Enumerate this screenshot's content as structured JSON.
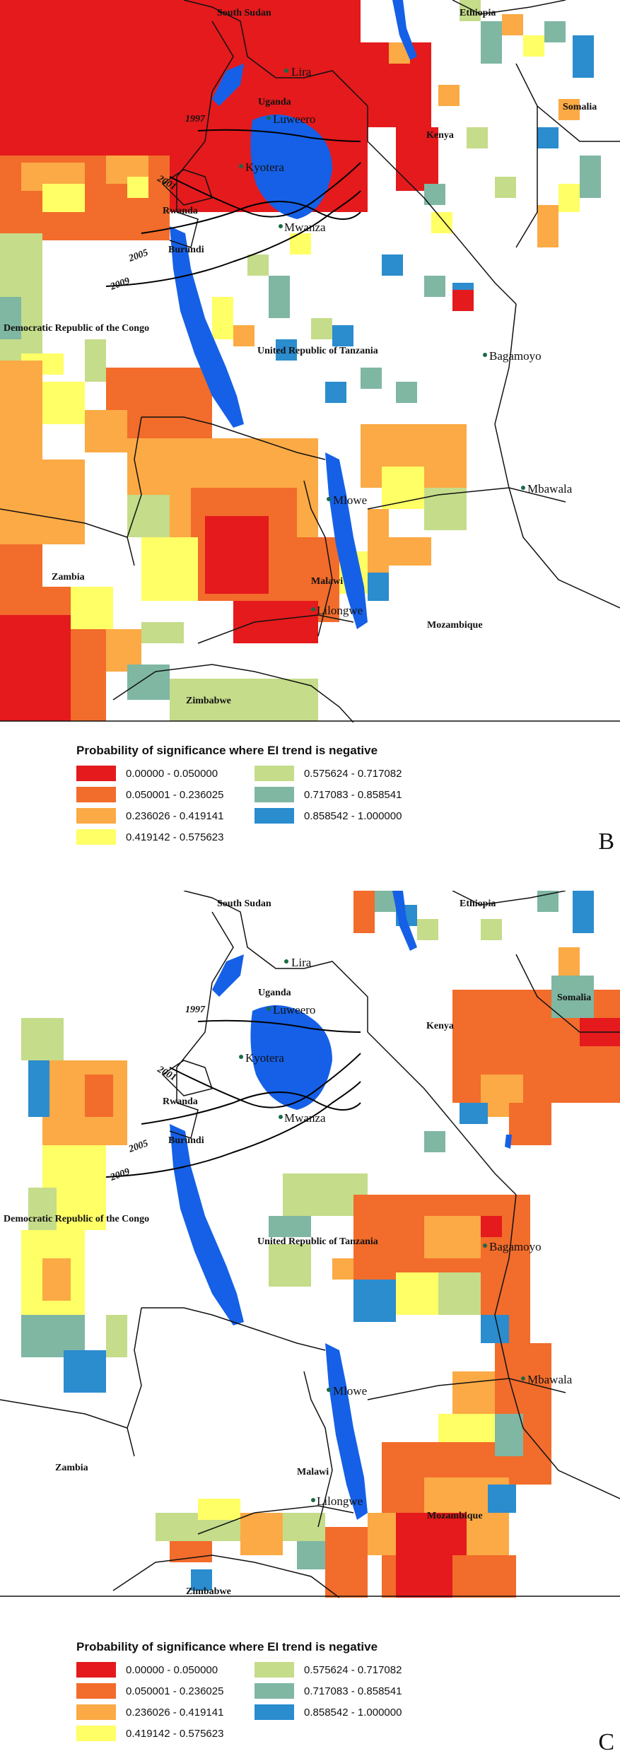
{
  "colors": {
    "c1": "#e41a1c",
    "c2": "#f26c2b",
    "c3": "#fbaa45",
    "c4": "#ffff66",
    "c5": "#c5dc8a",
    "c6": "#7fb7a3",
    "c7": "#2b8cce",
    "lake": "#1560e6",
    "border": "#111111"
  },
  "legend": {
    "title": "Probability of significance where EI trend is negative",
    "items": [
      {
        "label": "0.00000 - 0.050000",
        "color": "#e41a1c"
      },
      {
        "label": "0.050001 - 0.236025",
        "color": "#f26c2b"
      },
      {
        "label": "0.236026 - 0.419141",
        "color": "#fbaa45"
      },
      {
        "label": "0.419142 - 0.575623",
        "color": "#ffff66"
      },
      {
        "label": "0.575624 - 0.717082",
        "color": "#c5dc8a"
      },
      {
        "label": "0.717083 - 0.858541",
        "color": "#7fb7a3"
      },
      {
        "label": "0.858542 - 1.000000",
        "color": "#2b8cce"
      }
    ]
  },
  "labels": {
    "countries": {
      "south_sudan": "South Sudan",
      "ethiopia": "Ethiopia",
      "uganda": "Uganda",
      "somalia": "Somalia",
      "kenya": "Kenya",
      "rwanda": "Rwanda",
      "burundi": "Burundi",
      "drc": "Democratic Republic of the Congo",
      "tanzania": "United Republic of Tanzania",
      "zambia": "Zambia",
      "malawi": "Malawi",
      "mozambique": "Mozambique",
      "zimbabwe": "Zimbabwe"
    },
    "cities": {
      "lira": "Lira",
      "luweero": "Luweero",
      "kyotera": "Kyotera",
      "mwanza": "Mwanza",
      "bagamoyo": "Bagamoyo",
      "mbawala": "Mbawala",
      "mlowe": "Mlowe",
      "lilongwe": "Lilongwe"
    },
    "years": {
      "y1997": "1997",
      "y2001": "2001",
      "y2005": "2005",
      "y2009": "2009"
    }
  },
  "panels": [
    {
      "letter": "B"
    },
    {
      "letter": "C"
    }
  ]
}
